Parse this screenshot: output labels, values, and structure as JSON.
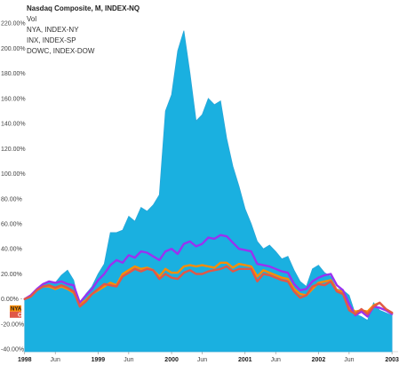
{
  "chart_data": {
    "type": "area",
    "title": "Nasdaq Composite, M, INDEX-NQ",
    "legend_entries": [
      "Vol",
      "NYA, INDEX-NY",
      "INX, INDEX-SP",
      "DOWC, INDEX-DOW"
    ],
    "ylim": [
      -42,
      230
    ],
    "y_ticks": [
      -40,
      -20,
      0,
      20,
      40,
      60,
      80,
      100,
      120,
      140,
      160,
      180,
      200,
      220
    ],
    "y_tick_labels": [
      "-40.00%",
      "-20.00%",
      "0.00%",
      "20.00%",
      "40.00%",
      "60.00%",
      "80.00%",
      "100.00%",
      "120.00%",
      "140.00%",
      "160.00%",
      "180.00%",
      "200.00%",
      "220.00%"
    ],
    "x_ticks": [
      {
        "t": 0,
        "label": "1998",
        "year": true
      },
      {
        "t": 5,
        "label": "Jun",
        "year": false
      },
      {
        "t": 12,
        "label": "1999",
        "year": true
      },
      {
        "t": 17,
        "label": "Jun",
        "year": false
      },
      {
        "t": 24,
        "label": "2000",
        "year": true
      },
      {
        "t": 29,
        "label": "Jun",
        "year": false
      },
      {
        "t": 36,
        "label": "2001",
        "year": true
      },
      {
        "t": 41,
        "label": "Jun",
        "year": false
      },
      {
        "t": 48,
        "label": "2002",
        "year": true
      },
      {
        "t": 53,
        "label": "Jun",
        "year": false
      },
      {
        "t": 60,
        "label": "2003",
        "year": true
      }
    ],
    "t_range": [
      -0.4,
      61
    ],
    "series": [
      {
        "name": "Nasdaq Composite",
        "kind": "area",
        "color": "#1ab0e0",
        "values": [
          0,
          3,
          8,
          12,
          14,
          13,
          19,
          23,
          15,
          -6,
          4,
          10,
          20,
          28,
          53,
          53,
          55,
          66,
          62,
          73,
          70,
          75,
          83,
          150,
          163,
          198,
          214,
          180,
          142,
          147,
          160,
          155,
          158,
          128,
          106,
          90,
          72,
          60,
          46,
          40,
          43,
          38,
          32,
          34,
          23,
          14,
          10,
          24,
          27,
          21,
          18,
          8,
          7,
          3,
          -12,
          -14,
          -17,
          -3,
          -9,
          -11,
          -13
        ]
      },
      {
        "name": "NYA, INDEX-NY",
        "kind": "line",
        "color": "#ff8c00",
        "values": [
          0,
          2,
          7,
          10,
          10,
          8,
          10,
          8,
          5,
          -4,
          -1,
          4,
          7,
          10,
          13,
          11,
          20,
          23,
          26,
          24,
          25,
          23,
          18,
          24,
          21,
          21,
          26,
          27,
          26,
          27,
          26,
          25,
          29,
          29,
          25,
          28,
          27,
          26,
          18,
          23,
          21,
          19,
          17,
          16,
          8,
          4,
          3,
          8,
          13,
          14,
          15,
          7,
          6,
          -7,
          -10,
          -9,
          -10,
          -5,
          -3,
          -8,
          -11
        ]
      },
      {
        "name": "INX, INDEX-SP",
        "kind": "line",
        "color": "#9a32f0",
        "values": [
          0,
          3,
          8,
          12,
          14,
          13,
          14,
          12,
          11,
          -3,
          3,
          8,
          15,
          20,
          27,
          31,
          29,
          35,
          33,
          38,
          37,
          34,
          31,
          38,
          40,
          36,
          44,
          46,
          42,
          44,
          49,
          48,
          51,
          50,
          45,
          40,
          39,
          38,
          28,
          27,
          26,
          24,
          22,
          21,
          12,
          7,
          8,
          14,
          17,
          19,
          20,
          11,
          7,
          -4,
          -13,
          -10,
          -14,
          -6,
          -7,
          -9,
          -12
        ]
      },
      {
        "name": "DOWC, INDEX-DOW",
        "kind": "line",
        "color": "#e05848",
        "values": [
          0,
          2,
          7,
          10,
          11,
          9,
          11,
          9,
          6,
          -6,
          -2,
          4,
          8,
          12,
          11,
          10,
          18,
          21,
          24,
          22,
          24,
          23,
          16,
          20,
          17,
          16,
          21,
          23,
          20,
          20,
          22,
          23,
          24,
          26,
          22,
          24,
          24,
          24,
          14,
          20,
          19,
          17,
          15,
          14,
          6,
          1,
          3,
          10,
          12,
          11,
          14,
          6,
          4,
          -9,
          -12,
          -8,
          -12,
          -6,
          -3,
          -8,
          -11
        ]
      }
    ],
    "grid": false,
    "legend_position": "top-left"
  },
  "badge": {
    "top_label": "NYA",
    "bottom_label": "C",
    "colors": [
      "#ff8c00",
      "#e05848"
    ]
  }
}
